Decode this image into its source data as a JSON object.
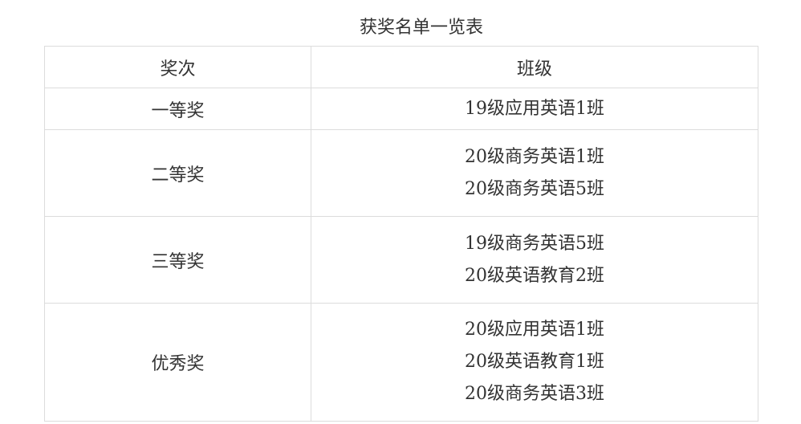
{
  "title": "获奖名单一览表",
  "headers": [
    "奖次",
    "班级"
  ],
  "rows": [
    {
      "award": "一等奖",
      "classes": [
        "19级应用英语1班"
      ]
    },
    {
      "award": "二等奖",
      "classes": [
        "20级商务英语1班",
        "20级商务英语5班"
      ]
    },
    {
      "award": "三等奖",
      "classes": [
        "19级商务英语5班",
        "20级英语教育2班"
      ]
    },
    {
      "award": "优秀奖",
      "classes": [
        "20级应用英语1班",
        "20级英语教育1班",
        "20级商务英语3班"
      ]
    }
  ]
}
